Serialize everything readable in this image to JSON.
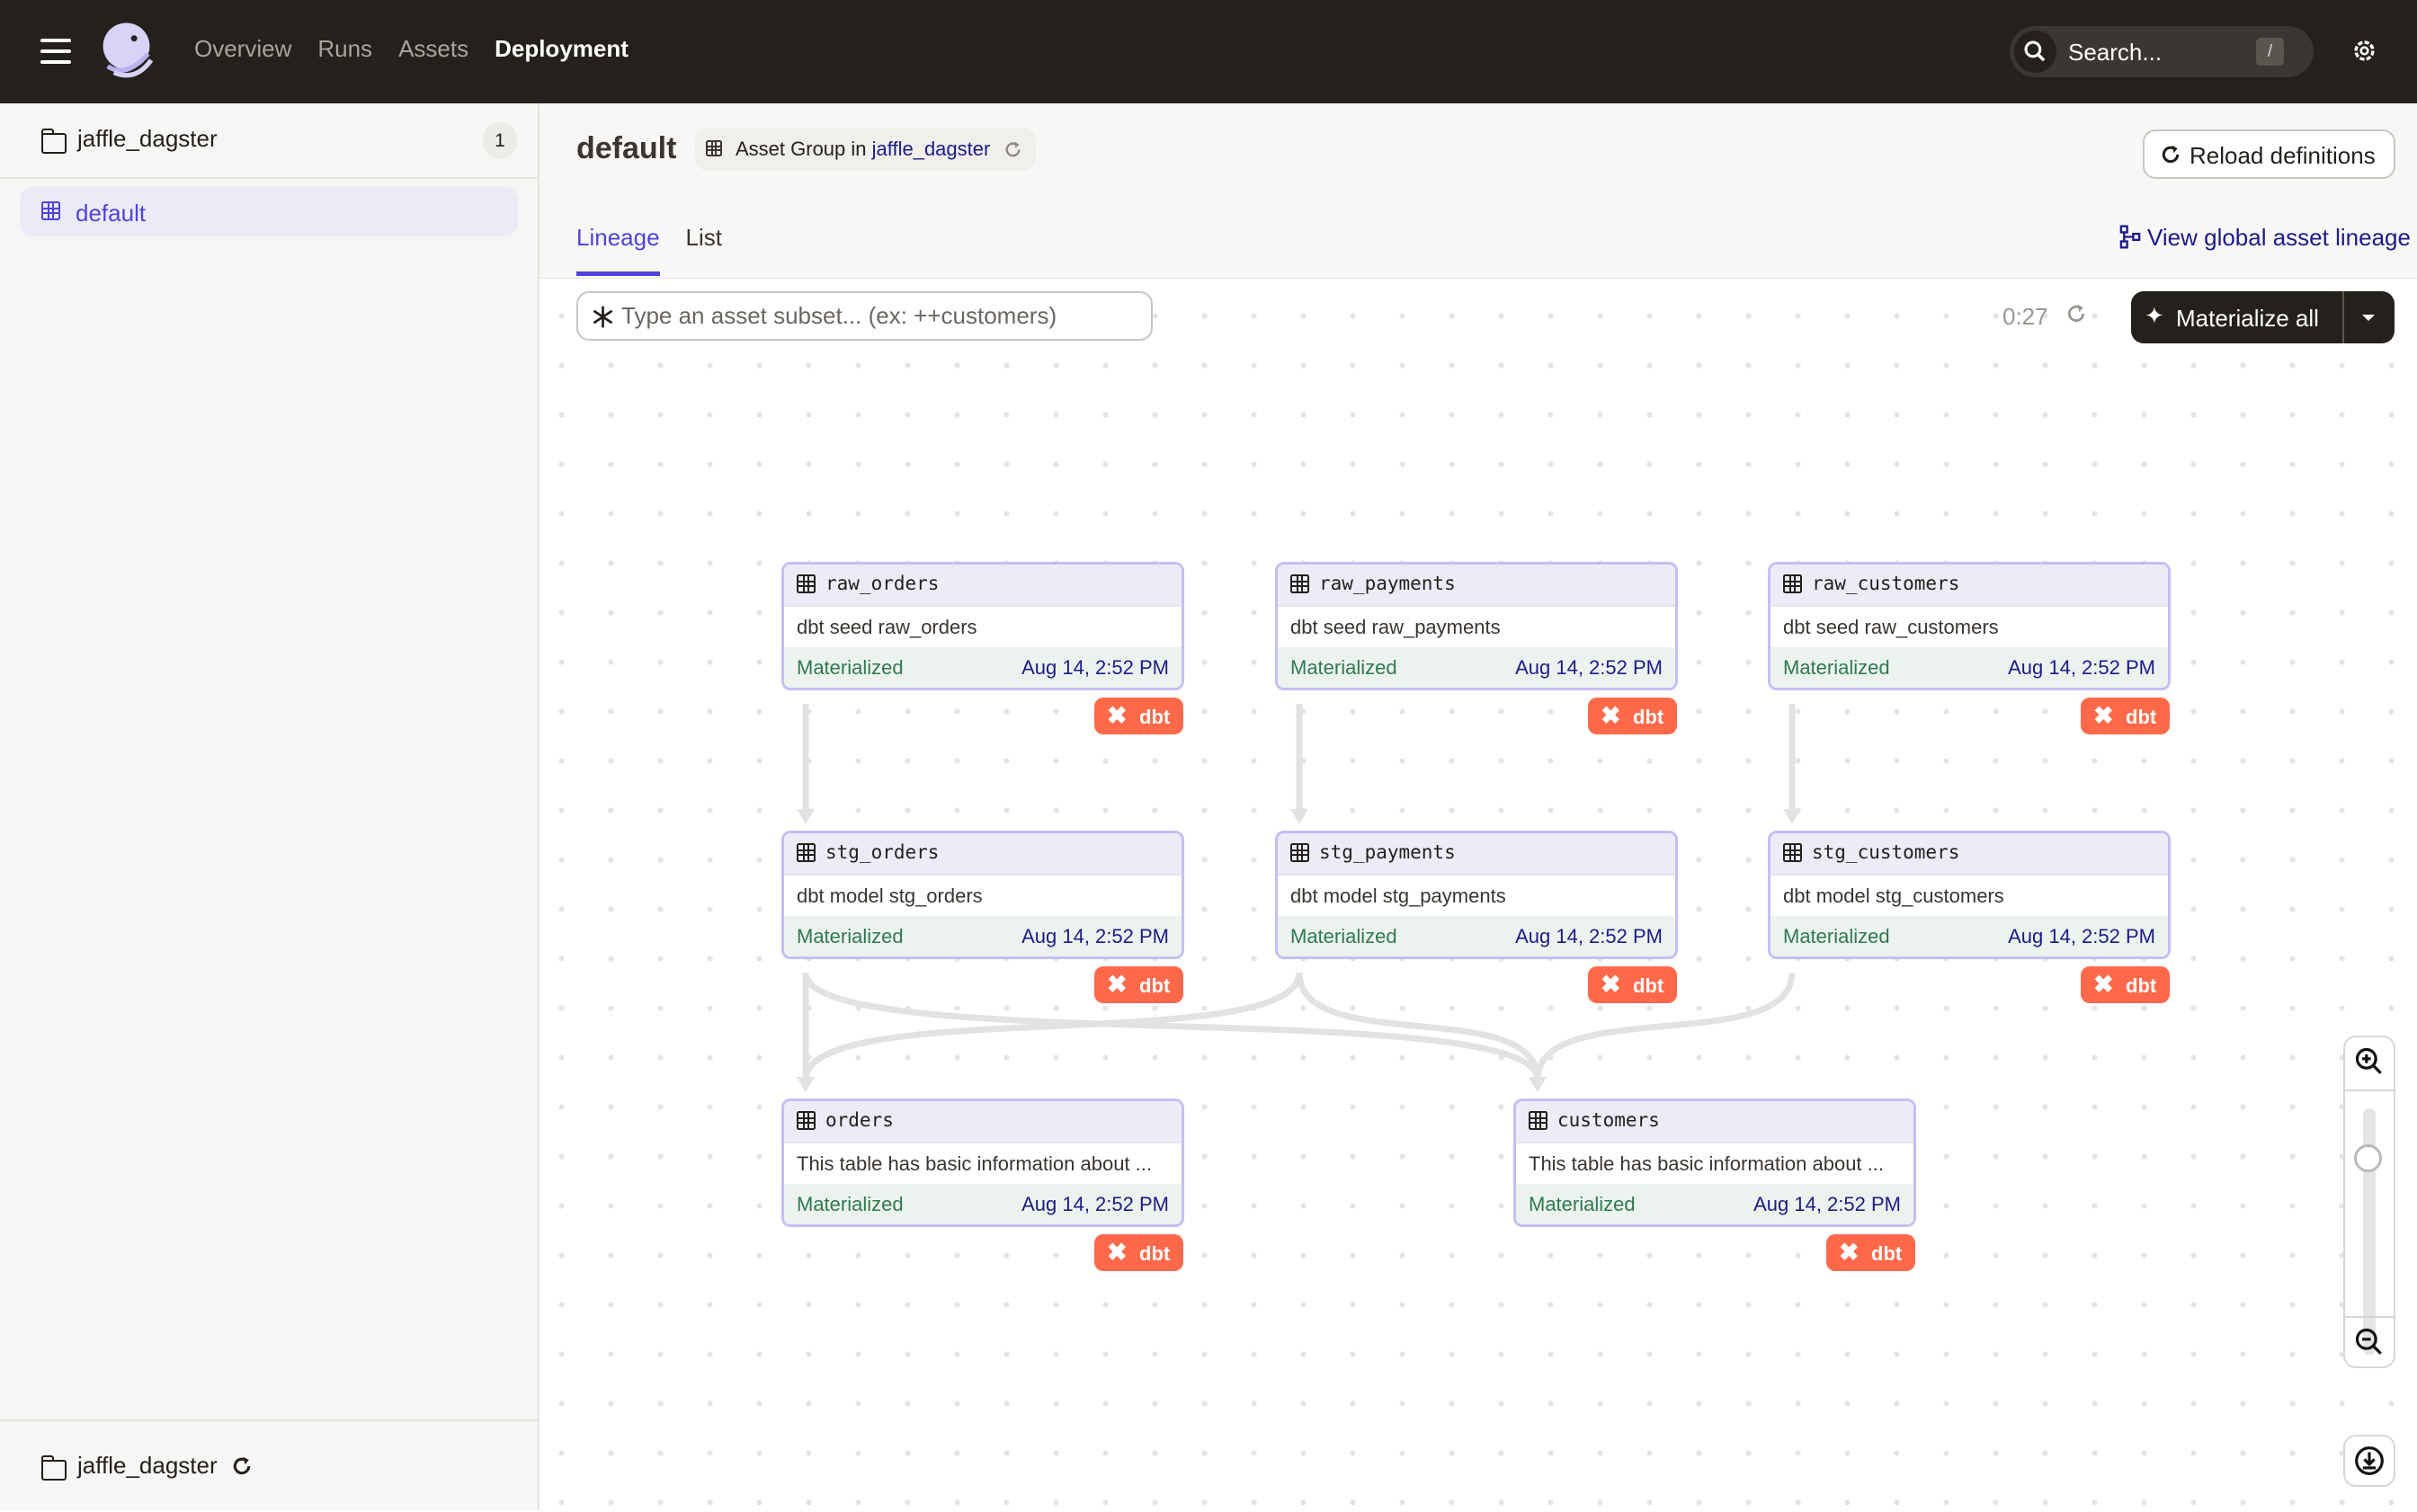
{
  "topbar": {
    "nav": [
      "Overview",
      "Runs",
      "Assets",
      "Deployment"
    ],
    "active_nav": "Deployment",
    "search_placeholder": "Search...",
    "search_shortcut": "/"
  },
  "sidebar": {
    "repo_name": "jaffle_dagster",
    "repo_count": "1",
    "groups": [
      {
        "label": "default",
        "active": true
      }
    ],
    "footer_repo": "jaffle_dagster"
  },
  "header": {
    "title": "default",
    "chip_prefix": "Asset Group in",
    "chip_link": "jaffle_dagster",
    "reload_label": "Reload definitions",
    "tabs": [
      "Lineage",
      "List"
    ],
    "active_tab": "Lineage",
    "global_link": "View global asset lineage"
  },
  "toolbar": {
    "subset_placeholder": "Type an asset subset... (ex: ++customers)",
    "timer": "0:27",
    "materialize_label": "Materialize all"
  },
  "graph": {
    "nodes": [
      {
        "id": "raw_orders",
        "name": "raw_orders",
        "desc": "dbt seed raw_orders",
        "status": "Materialized",
        "date": "Aug 14, 2:52 PM",
        "kind": "dbt"
      },
      {
        "id": "raw_payments",
        "name": "raw_payments",
        "desc": "dbt seed raw_payments",
        "status": "Materialized",
        "date": "Aug 14, 2:52 PM",
        "kind": "dbt"
      },
      {
        "id": "raw_customers",
        "name": "raw_customers",
        "desc": "dbt seed raw_customers",
        "status": "Materialized",
        "date": "Aug 14, 2:52 PM",
        "kind": "dbt"
      },
      {
        "id": "stg_orders",
        "name": "stg_orders",
        "desc": "dbt model stg_orders",
        "status": "Materialized",
        "date": "Aug 14, 2:52 PM",
        "kind": "dbt"
      },
      {
        "id": "stg_payments",
        "name": "stg_payments",
        "desc": "dbt model stg_payments",
        "status": "Materialized",
        "date": "Aug 14, 2:52 PM",
        "kind": "dbt"
      },
      {
        "id": "stg_customers",
        "name": "stg_customers",
        "desc": "dbt model stg_customers",
        "status": "Materialized",
        "date": "Aug 14, 2:52 PM",
        "kind": "dbt"
      },
      {
        "id": "orders",
        "name": "orders",
        "desc": "This table has basic information about ...",
        "status": "Materialized",
        "date": "Aug 14, 2:52 PM",
        "kind": "dbt"
      },
      {
        "id": "customers",
        "name": "customers",
        "desc": "This table has basic information about ...",
        "status": "Materialized",
        "date": "Aug 14, 2:52 PM",
        "kind": "dbt"
      }
    ],
    "edges": [
      [
        "raw_orders",
        "stg_orders"
      ],
      [
        "raw_payments",
        "stg_payments"
      ],
      [
        "raw_customers",
        "stg_customers"
      ],
      [
        "stg_orders",
        "orders"
      ],
      [
        "stg_payments",
        "orders"
      ],
      [
        "stg_orders",
        "customers"
      ],
      [
        "stg_payments",
        "customers"
      ],
      [
        "stg_customers",
        "customers"
      ]
    ],
    "zoom_level": 0.8
  },
  "colors": {
    "accent": "#4f43dd",
    "topbar": "#24201b",
    "dbt": "#ff694a",
    "materialized": "#2f7a4f",
    "node_border": "#c3bff3"
  }
}
